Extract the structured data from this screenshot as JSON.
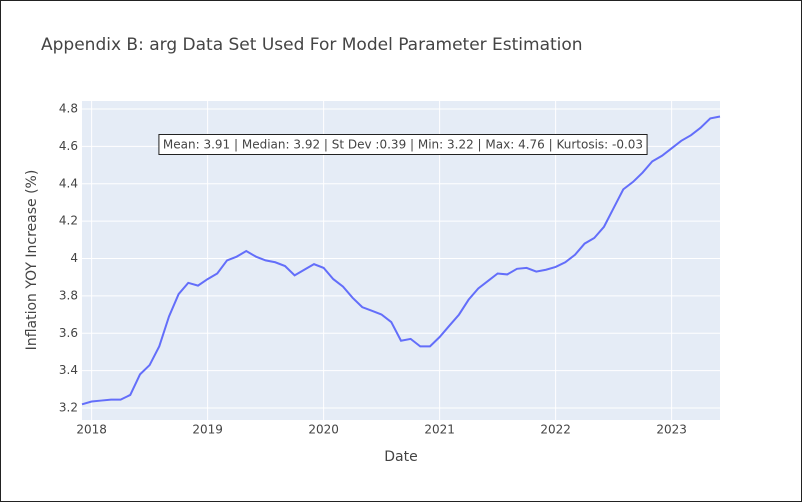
{
  "chart_data": {
    "type": "line",
    "title": "Appendix B: arg Data Set Used For Model Parameter Estimation",
    "x_label": "Date",
    "y_label": "Inflation YOY Increase (%)",
    "annotation": "Mean: 3.91 | Median: 3.92 | St Dev :0.39 | Min: 3.22 | Max: 4.76 | Kurtosis: -0.03",
    "x": [
      2017.917,
      2018,
      2018.083,
      2018.167,
      2018.25,
      2018.333,
      2018.417,
      2018.5,
      2018.583,
      2018.667,
      2018.75,
      2018.833,
      2018.917,
      2019,
      2019.083,
      2019.167,
      2019.25,
      2019.333,
      2019.417,
      2019.5,
      2019.583,
      2019.667,
      2019.75,
      2019.833,
      2019.917,
      2020,
      2020.083,
      2020.167,
      2020.25,
      2020.333,
      2020.417,
      2020.5,
      2020.583,
      2020.667,
      2020.75,
      2020.833,
      2020.917,
      2021,
      2021.083,
      2021.167,
      2021.25,
      2021.333,
      2021.417,
      2021.5,
      2021.583,
      2021.667,
      2021.75,
      2021.833,
      2021.917,
      2022,
      2022.083,
      2022.167,
      2022.25,
      2022.333,
      2022.417,
      2022.5,
      2022.583,
      2022.667,
      2022.75,
      2022.833,
      2022.917,
      2023,
      2023.083,
      2023.167,
      2023.25,
      2023.333,
      2023.417
    ],
    "series": [
      {
        "color": "#636efa",
        "values": [
          3.22,
          3.235,
          3.24,
          3.245,
          3.245,
          3.27,
          3.38,
          3.43,
          3.53,
          3.69,
          3.81,
          3.87,
          3.855,
          3.89,
          3.92,
          3.99,
          4.01,
          4.04,
          4.01,
          3.99,
          3.98,
          3.96,
          3.91,
          3.94,
          3.97,
          3.95,
          3.89,
          3.85,
          3.79,
          3.74,
          3.72,
          3.7,
          3.66,
          3.56,
          3.57,
          3.53,
          3.53,
          3.58,
          3.64,
          3.7,
          3.78,
          3.84,
          3.88,
          3.92,
          3.915,
          3.945,
          3.95,
          3.93,
          3.94,
          3.955,
          3.98,
          4.02,
          4.08,
          4.11,
          4.17,
          4.27,
          4.37,
          4.41,
          4.46,
          4.52,
          4.55,
          4.59,
          4.63,
          4.66,
          4.7,
          4.75,
          4.76
        ]
      }
    ],
    "xlim": [
      2017.917,
      2023.417
    ],
    "xticks": [
      2018,
      2019,
      2020,
      2021,
      2022,
      2023
    ],
    "ylim": [
      3.136,
      4.843
    ],
    "yticks": [
      3.2,
      3.4,
      3.6,
      3.8,
      4,
      4.2,
      4.4,
      4.6,
      4.8
    ],
    "grid": true
  }
}
